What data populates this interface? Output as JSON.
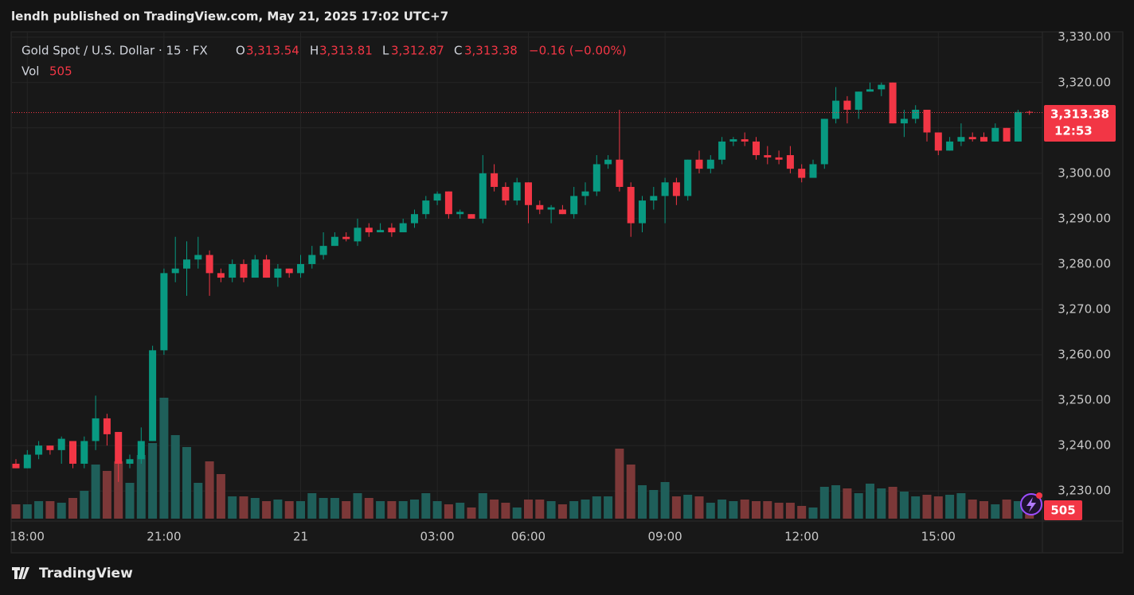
{
  "header": "lendh published on TradingView.com, May 21, 2025 17:02 UTC+7",
  "footer": "TradingView",
  "legend": {
    "symbol": "Gold Spot / U.S. Dollar · 15 · FX",
    "items": [
      {
        "key": "O",
        "label": "3,313.54"
      },
      {
        "key": "H",
        "label": "3,313.81"
      },
      {
        "key": "L",
        "label": "3,312.87"
      },
      {
        "key": "C",
        "label": "3,313.38"
      }
    ],
    "change": "−0.16 (−0.00%)",
    "volume_key": "Vol",
    "volume_label": "505"
  },
  "last_price_label": "3,313.38",
  "countdown": "12:53",
  "chart_data": {
    "type": "candlestick",
    "categories": [
      null,
      "18:00",
      null,
      null,
      null,
      null,
      null,
      null,
      null,
      null,
      null,
      null,
      null,
      "21:00",
      null,
      null,
      null,
      null,
      null,
      null,
      null,
      null,
      null,
      null,
      null,
      "21",
      null,
      null,
      null,
      null,
      null,
      null,
      null,
      null,
      null,
      null,
      null,
      "03:00",
      null,
      null,
      null,
      null,
      null,
      null,
      null,
      "06:00",
      null,
      null,
      null,
      null,
      null,
      null,
      null,
      null,
      null,
      null,
      null,
      "09:00",
      null,
      null,
      null,
      null,
      null,
      null,
      null,
      null,
      null,
      null,
      null,
      "12:00",
      null,
      null,
      null,
      null,
      null,
      null,
      null,
      null,
      null,
      null,
      null,
      "15:00",
      null,
      null,
      null,
      null,
      null,
      null,
      null,
      null
    ],
    "open": [
      3236,
      3235,
      3238,
      3240,
      3239,
      3241,
      3236,
      3241,
      3246,
      3243,
      3236,
      3237,
      3241,
      3261,
      3278,
      3279,
      3281,
      3282,
      3278,
      3277,
      3280,
      3277,
      3281,
      3277,
      3279,
      3278,
      3280,
      3282,
      3284,
      3286,
      3285,
      3288,
      3287,
      3288,
      3287,
      3289,
      3291,
      3294,
      3296,
      3291,
      3291,
      3290,
      3300,
      3297,
      3294,
      3298,
      3293,
      3292,
      3292,
      3291,
      3295,
      3296,
      3302,
      3303,
      3297,
      3289,
      3294,
      3295,
      3298,
      3295,
      3303,
      3301,
      3303,
      3307,
      3307.5,
      3307,
      3304,
      3303.5,
      3304,
      3301,
      3299,
      3302,
      3312,
      3316,
      3314,
      3318,
      3318.5,
      3320,
      3311,
      3312,
      3314,
      3309,
      3305,
      3307,
      3308,
      3308,
      3307,
      3310,
      3307,
      3313.54
    ],
    "high": [
      3237,
      3239,
      3241,
      3240,
      3242,
      3241,
      3242,
      3251,
      3247,
      3243,
      3238,
      3244,
      3262,
      3279,
      3286,
      3285,
      3286,
      3283,
      3279,
      3281,
      3281,
      3282,
      3282,
      3280,
      3279,
      3282,
      3284,
      3287,
      3287,
      3287,
      3290,
      3289,
      3289,
      3289,
      3290,
      3292,
      3295,
      3296,
      3296,
      3292,
      3291,
      3304,
      3302,
      3298,
      3299,
      3298,
      3294,
      3293,
      3293,
      3297,
      3298,
      3304,
      3304,
      3314,
      3298,
      3295,
      3297,
      3299,
      3299,
      3303,
      3305,
      3304,
      3308,
      3308,
      3309,
      3308,
      3306,
      3305,
      3306,
      3302,
      3303,
      3312,
      3319,
      3317,
      3318,
      3320,
      3320,
      3320,
      3314,
      3315,
      3314,
      3309,
      3308,
      3311,
      3309,
      3309,
      3311,
      3310,
      3314,
      3313.81
    ],
    "low": [
      3235,
      3235,
      3237,
      3238,
      3236,
      3235,
      3235,
      3239,
      3240,
      3232,
      3235,
      3236,
      3241,
      3260,
      3276,
      3273,
      3279,
      3273,
      3276,
      3276,
      3276,
      3277,
      3277,
      3275,
      3277,
      3277,
      3279,
      3281,
      3284,
      3285,
      3284,
      3286,
      3287,
      3286,
      3287,
      3288,
      3290,
      3293,
      3290,
      3290,
      3290,
      3289,
      3296,
      3293,
      3293,
      3289,
      3291,
      3289,
      3291,
      3290,
      3293,
      3295,
      3301,
      3296,
      3286,
      3287,
      3292,
      3289,
      3293,
      3294,
      3300,
      3300,
      3302,
      3306,
      3306,
      3303,
      3302,
      3302,
      3300,
      3298,
      3299,
      3301,
      3311,
      3311,
      3312,
      3318,
      3317,
      3311,
      3308,
      3311,
      3307,
      3304,
      3305,
      3306,
      3307,
      3307,
      3307,
      3307,
      3307,
      3312.87
    ],
    "close": [
      3235,
      3238,
      3240,
      3239,
      3241.5,
      3236,
      3241,
      3246,
      3242.5,
      3236,
      3237,
      3241,
      3261,
      3278,
      3279,
      3281,
      3282,
      3278,
      3277,
      3280,
      3277,
      3281,
      3277,
      3279,
      3278,
      3280,
      3282,
      3284,
      3286,
      3285.5,
      3288,
      3287,
      3287.5,
      3287,
      3289,
      3291,
      3294,
      3295.5,
      3291,
      3291.5,
      3290,
      3300,
      3297,
      3294,
      3298,
      3293,
      3292,
      3292.5,
      3291,
      3295,
      3296,
      3302,
      3303,
      3297,
      3289,
      3294,
      3295,
      3298,
      3295,
      3303,
      3301,
      3303,
      3307,
      3307.5,
      3307,
      3304,
      3303.5,
      3303,
      3301,
      3299,
      3302,
      3312,
      3316,
      3314,
      3318,
      3318.5,
      3319.5,
      3311,
      3312,
      3314,
      3309,
      3305,
      3307,
      3308,
      3307.5,
      3307,
      3310,
      3307,
      3313.5,
      3313.38
    ],
    "volume": [
      396,
      396,
      484,
      484,
      440,
      572,
      770,
      1496,
      1320,
      1584,
      990,
      1760,
      2090,
      3344,
      2310,
      1980,
      990,
      1584,
      1232,
      616,
      616,
      572,
      484,
      528,
      484,
      484,
      704,
      572,
      572,
      484,
      704,
      572,
      484,
      484,
      484,
      528,
      704,
      484,
      396,
      440,
      308,
      704,
      528,
      440,
      308,
      528,
      528,
      484,
      396,
      484,
      528,
      616,
      616,
      1936,
      1496,
      924,
      792,
      1012,
      616,
      660,
      616,
      440,
      528,
      484,
      528,
      484,
      484,
      440,
      440,
      352,
      308,
      880,
      924,
      836,
      704,
      968,
      836,
      880,
      748,
      616,
      660,
      616,
      660,
      704,
      528,
      484,
      396,
      528,
      484,
      505
    ],
    "ylim": [
      3223.9,
      3331
    ],
    "yticks": [
      {
        "value": 3230,
        "label": "3,230.00"
      },
      {
        "value": 3240,
        "label": "3,240.00"
      },
      {
        "value": 3250,
        "label": "3,250.00"
      },
      {
        "value": 3260,
        "label": "3,260.00"
      },
      {
        "value": 3270,
        "label": "3,270.00"
      },
      {
        "value": 3280,
        "label": "3,280.00"
      },
      {
        "value": 3290,
        "label": "3,290.00"
      },
      {
        "value": 3300,
        "label": "3,300.00"
      },
      {
        "value": 3310,
        "label": "3,310.00"
      },
      {
        "value": 3320,
        "label": "3,320.00"
      },
      {
        "value": 3330,
        "label": "3,330.00"
      }
    ],
    "grid": true,
    "up_color": "#089981",
    "down_color": "#f23645",
    "volume_up_color": "#1f5f5a",
    "volume_down_color": "#7c3838"
  }
}
